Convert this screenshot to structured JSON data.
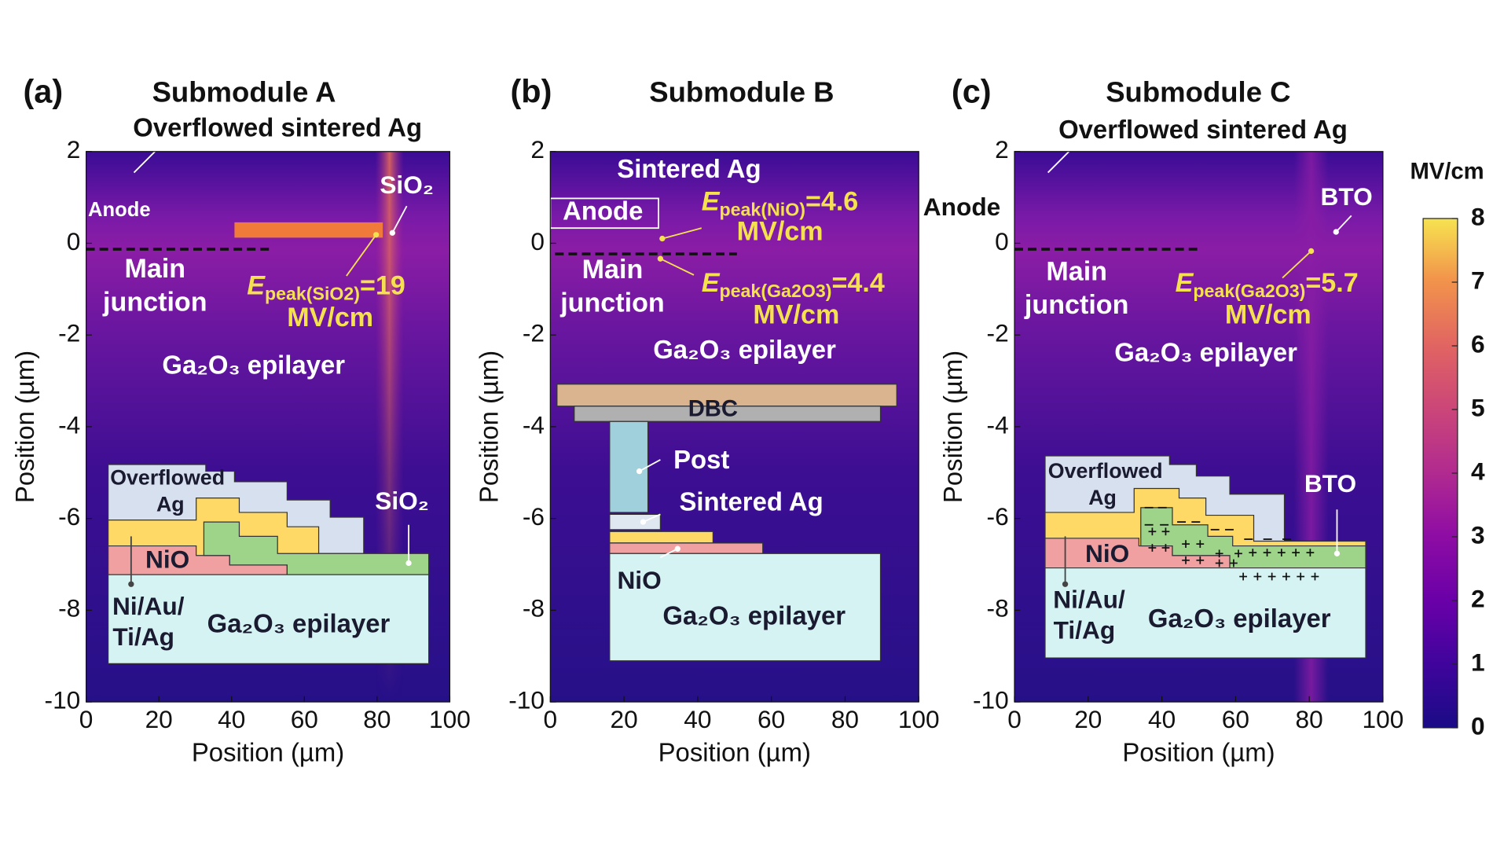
{
  "chart_data": [
    {
      "type": "heatmap",
      "panel_label": "(a)",
      "title": "Submodule A",
      "xlabel": "Position (µm)",
      "ylabel": "Position (µm)",
      "xlim": [
        0,
        100
      ],
      "ylim": [
        -10,
        2
      ],
      "xticks": [
        0,
        20,
        40,
        60,
        80,
        100
      ],
      "yticks": [
        -10,
        -8,
        -6,
        -4,
        -2,
        0,
        2
      ],
      "labels": [
        {
          "text": "Overflowed sintered Ag"
        },
        {
          "text": "Anode"
        },
        {
          "text": "SiO₂"
        },
        {
          "text": "Main"
        },
        {
          "text": "junction"
        },
        {
          "symbol": "E",
          "subscript": "peak(SiO2)",
          "text": "=19"
        },
        {
          "text": "MV/cm"
        },
        {
          "text": "Ga₂O₃ epilayer"
        },
        {
          "text": "Overflowed"
        },
        {
          "text": "Ag"
        },
        {
          "text": "NiO"
        },
        {
          "text": "SiO₂"
        },
        {
          "text": "Ni/Au/"
        },
        {
          "text": "Ti/Ag"
        },
        {
          "text": "Ga₂O₃ epilayer"
        }
      ]
    },
    {
      "type": "heatmap",
      "panel_label": "(b)",
      "title": "Submodule B",
      "xlabel": "Position (µm)",
      "ylabel": "Position (µm)",
      "xlim": [
        0,
        100
      ],
      "ylim": [
        -10,
        2
      ],
      "xticks": [
        0,
        20,
        40,
        60,
        80,
        100
      ],
      "yticks": [
        -10,
        -8,
        -6,
        -4,
        -2,
        0,
        2
      ],
      "labels": [
        {
          "text": "Sintered Ag"
        },
        {
          "text": "Anode"
        },
        {
          "symbol": "E",
          "subscript": "peak(NiO)",
          "text": "=4.6"
        },
        {
          "text": "MV/cm"
        },
        {
          "text": "Main"
        },
        {
          "text": "junction"
        },
        {
          "symbol": "E",
          "subscript": "peak(Ga2O3)",
          "text": "=4.4"
        },
        {
          "text": "MV/cm"
        },
        {
          "text": "Ga₂O₃ epilayer"
        },
        {
          "text": "DBC"
        },
        {
          "text": "Post"
        },
        {
          "text": "Sintered Ag"
        },
        {
          "text": "NiO"
        },
        {
          "text": "Ga₂O₃ epilayer"
        }
      ]
    },
    {
      "type": "heatmap",
      "panel_label": "(c)",
      "title": "Submodule C",
      "xlabel": "Position (µm)",
      "ylabel": "Position (µm)",
      "xlim": [
        0,
        100
      ],
      "ylim": [
        -10,
        2
      ],
      "xticks": [
        0,
        20,
        40,
        60,
        80,
        100
      ],
      "yticks": [
        -10,
        -8,
        -6,
        -4,
        -2,
        0,
        2
      ],
      "labels": [
        {
          "text": "Overflowed sintered Ag"
        },
        {
          "text": "Anode"
        },
        {
          "text": "BTO"
        },
        {
          "text": "Main"
        },
        {
          "text": "junction"
        },
        {
          "symbol": "E",
          "subscript": "peak(Ga2O3)",
          "text": "=5.7"
        },
        {
          "text": "MV/cm"
        },
        {
          "text": "Ga₂O₃ epilayer"
        },
        {
          "text": "Overflowed"
        },
        {
          "text": "Ag"
        },
        {
          "text": "NiO"
        },
        {
          "text": "BTO"
        },
        {
          "text": "Ni/Au/"
        },
        {
          "text": "Ti/Ag"
        },
        {
          "text": "Ga₂O₃ epilayer"
        }
      ]
    }
  ],
  "colorbar": {
    "label": "MV/cm",
    "lim": [
      0,
      8
    ],
    "ticks": [
      0,
      1,
      2,
      3,
      4,
      5,
      6,
      7,
      8
    ],
    "colormap": "plasma"
  }
}
